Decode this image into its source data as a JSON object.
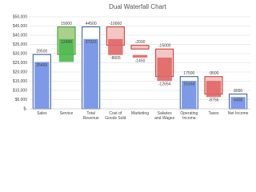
{
  "chart_data": {
    "type": "waterfall",
    "title": "Dual Waterfall Chart",
    "categories": [
      "Sales",
      "Service",
      "Total Revenue",
      "Cost of Goods Sold",
      "Marketing",
      "Salaries and Wages",
      "Operating Income",
      "Taxes",
      "Net Income"
    ],
    "measure": [
      "total",
      "increase",
      "total",
      "decrease",
      "decrease",
      "decrease",
      "total",
      "decrease",
      "total"
    ],
    "colors": {
      "total": "#2f5597",
      "increase": "#3a9a3a",
      "decrease": "#c0392b"
    },
    "series": [
      {
        "style": "outline",
        "values": [
          29500,
          15000,
          44500,
          -10000,
          -2000,
          -15000,
          17500,
          -9500,
          8000
        ]
      },
      {
        "style": "fill",
        "values": [
          25465,
          12468,
          37933,
          -8665,
          -1450,
          -12654,
          15164,
          -8756,
          6408
        ]
      }
    ],
    "ylim": [
      0,
      50000
    ],
    "yticks": [
      {
        "value": 0,
        "label": "$-"
      },
      {
        "value": 5000,
        "label": "$5,000"
      },
      {
        "value": 10000,
        "label": "$10,000"
      },
      {
        "value": 15000,
        "label": "$15,000"
      },
      {
        "value": 20000,
        "label": "$20,000"
      },
      {
        "value": 25000,
        "label": "$25,000"
      },
      {
        "value": 30000,
        "label": "$30,000"
      },
      {
        "value": 35000,
        "label": "$35,000"
      },
      {
        "value": 40000,
        "label": "$40,000"
      },
      {
        "value": 45000,
        "label": "$45,000"
      },
      {
        "value": 50000,
        "label": "$50,000"
      }
    ],
    "grid": true
  }
}
